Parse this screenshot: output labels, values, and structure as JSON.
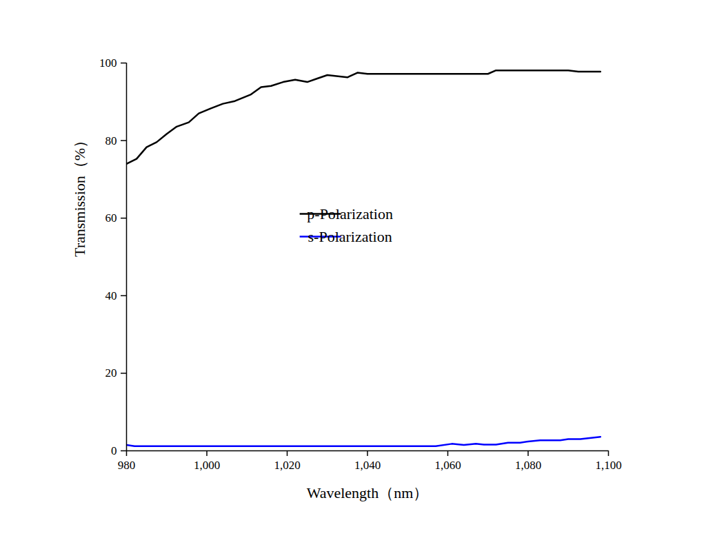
{
  "chart_data": {
    "type": "line",
    "x_label": "Wavelength（nm）",
    "y_label": "Transmission（%）",
    "xlim": [
      980,
      1100
    ],
    "xticks": [
      980,
      1000,
      1020,
      1040,
      1060,
      1080,
      1100
    ],
    "ylim": [
      0,
      100
    ],
    "yticks": [
      0,
      20,
      40,
      60,
      80,
      100
    ],
    "grid": false,
    "legend": "center",
    "series": [
      {
        "name": "p-Polarization",
        "color": "#000000",
        "x": [
          980,
          982.5,
          985,
          987.5,
          990,
          992.5,
          995.5,
          998,
          1001,
          1004,
          1007,
          1011,
          1013.5,
          1016,
          1019,
          1022,
          1025,
          1027.5,
          1030,
          1035,
          1037.5,
          1040,
          1070,
          1072,
          1090,
          1092.5,
          1098
        ],
        "values": [
          74.0,
          75.3,
          78.3,
          79.6,
          81.7,
          83.6,
          84.7,
          87.0,
          88.3,
          89.5,
          90.2,
          91.9,
          93.8,
          94.1,
          95.1,
          95.7,
          95.1,
          96.0,
          96.9,
          96.3,
          97.5,
          97.2,
          97.2,
          98.1,
          98.1,
          97.8,
          97.8
        ]
      },
      {
        "name": "s-Polarization",
        "color": "#0000ff",
        "x": [
          980,
          982,
          1057,
          1061,
          1064,
          1067,
          1069,
          1072,
          1075,
          1078,
          1080,
          1083,
          1088,
          1090,
          1093,
          1098
        ],
        "values": [
          1.5,
          1.2,
          1.2,
          1.8,
          1.5,
          1.8,
          1.6,
          1.6,
          2.1,
          2.1,
          2.4,
          2.7,
          2.7,
          3.0,
          3.0,
          3.6
        ]
      }
    ]
  }
}
